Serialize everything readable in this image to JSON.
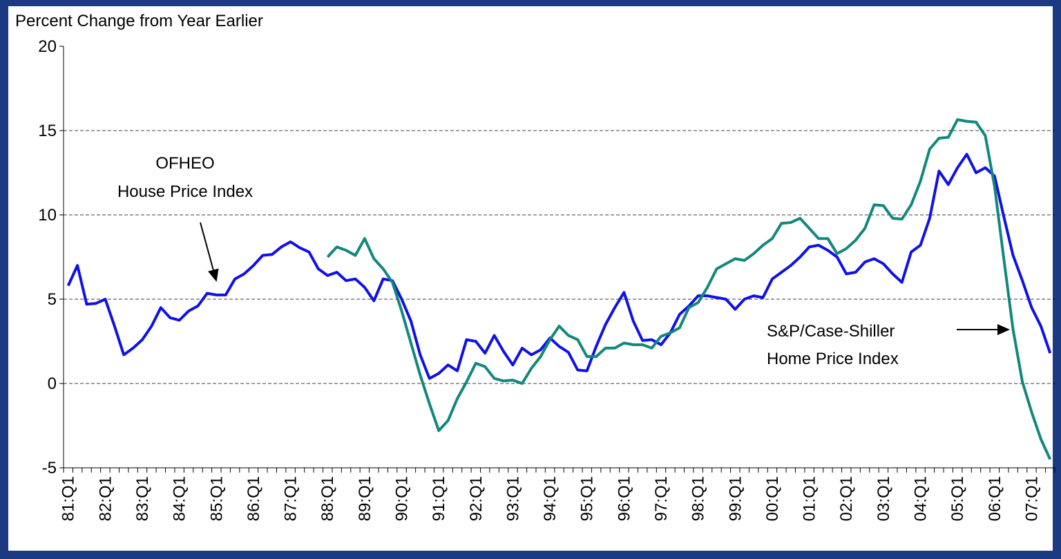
{
  "chart_data": {
    "type": "line",
    "title": "Percent Change from Year Earlier",
    "categories": [
      "81:Q1",
      null,
      null,
      null,
      "82:Q1",
      null,
      null,
      null,
      "83:Q1",
      null,
      null,
      null,
      "84:Q1",
      null,
      null,
      null,
      "85:Q1",
      null,
      null,
      null,
      "86:Q1",
      null,
      null,
      null,
      "87:Q1",
      null,
      null,
      null,
      "88:Q1",
      null,
      null,
      null,
      "89:Q1",
      null,
      null,
      null,
      "90:Q1",
      null,
      null,
      null,
      "91:Q1",
      null,
      null,
      null,
      "92:Q1",
      null,
      null,
      null,
      "93:Q1",
      null,
      null,
      null,
      "94:Q1",
      null,
      null,
      null,
      "95:Q1",
      null,
      null,
      null,
      "96:Q1",
      null,
      null,
      null,
      "97:Q1",
      null,
      null,
      null,
      "98:Q1",
      null,
      null,
      null,
      "99:Q1",
      null,
      null,
      null,
      "00:Q1",
      null,
      null,
      null,
      "01:Q1",
      null,
      null,
      null,
      "02:Q1",
      null,
      null,
      null,
      "03:Q1",
      null,
      null,
      null,
      "04:Q1",
      null,
      null,
      null,
      "05:Q1",
      null,
      null,
      null,
      "06:Q1",
      null,
      null,
      null,
      "07:Q1",
      null,
      null
    ],
    "series": [
      {
        "color": "#1010e8",
        "values": [
          5.8,
          7.0,
          4.7,
          4.75,
          5.0,
          3.4,
          1.7,
          2.1,
          2.6,
          3.4,
          4.5,
          3.9,
          3.75,
          4.3,
          4.6,
          5.35,
          5.25,
          5.25,
          6.2,
          6.5,
          7.0,
          7.6,
          7.65,
          8.1,
          8.4,
          8.05,
          7.8,
          6.8,
          6.4,
          6.6,
          6.1,
          6.2,
          5.7,
          4.9,
          6.2,
          6.1,
          5.0,
          3.7,
          1.7,
          0.3,
          0.6,
          1.1,
          0.75,
          2.6,
          2.5,
          1.8,
          2.85,
          1.9,
          1.1,
          2.1,
          1.7,
          2.0,
          2.7,
          2.2,
          1.85,
          0.8,
          0.75,
          2.2,
          3.5,
          4.5,
          5.4,
          3.7,
          2.55,
          2.6,
          2.3,
          3.0,
          4.1,
          4.6,
          5.2,
          5.2,
          5.1,
          5.0,
          4.4,
          5.0,
          5.2,
          5.1,
          6.2,
          6.6,
          7.0,
          7.5,
          8.1,
          8.2,
          7.9,
          7.5,
          6.5,
          6.6,
          7.2,
          7.4,
          7.1,
          6.5,
          6.0,
          7.8,
          8.2,
          9.8,
          12.6,
          11.8,
          12.8,
          13.6,
          12.5,
          12.8,
          12.3,
          9.9,
          7.6,
          6.1,
          4.5,
          3.4,
          1.8
        ]
      },
      {
        "color": "#12887c",
        "values": [
          null,
          null,
          null,
          null,
          null,
          null,
          null,
          null,
          null,
          null,
          null,
          null,
          null,
          null,
          null,
          null,
          null,
          null,
          null,
          null,
          null,
          null,
          null,
          null,
          null,
          null,
          null,
          null,
          7.5,
          8.1,
          7.9,
          7.6,
          8.6,
          7.4,
          6.8,
          6.0,
          4.3,
          2.4,
          0.5,
          -1.2,
          -2.8,
          -2.2,
          -0.9,
          0.1,
          1.2,
          1.0,
          0.3,
          0.15,
          0.2,
          0.0,
          0.9,
          1.6,
          2.6,
          3.4,
          2.85,
          2.6,
          1.6,
          1.6,
          2.1,
          2.1,
          2.4,
          2.3,
          2.3,
          2.1,
          2.8,
          3.0,
          3.3,
          4.5,
          4.8,
          5.7,
          6.8,
          7.1,
          7.4,
          7.3,
          7.7,
          8.2,
          8.6,
          9.5,
          9.55,
          9.8,
          9.2,
          8.6,
          8.6,
          7.7,
          8.0,
          8.5,
          9.2,
          10.6,
          10.55,
          9.8,
          9.75,
          10.6,
          12.0,
          13.9,
          14.55,
          14.6,
          15.65,
          15.55,
          15.5,
          14.7,
          11.7,
          7.4,
          3.2,
          0.1,
          -1.7,
          -3.3,
          -4.5
        ]
      }
    ],
    "annotations": [
      [
        "OFHEO",
        "House Price Index"
      ],
      [
        "S&P/Case-Shiller",
        "Home Price Index"
      ]
    ],
    "ylim": [
      -5,
      20
    ],
    "yticks": [
      -5,
      0,
      5,
      10,
      15,
      20
    ],
    "grid": true
  }
}
